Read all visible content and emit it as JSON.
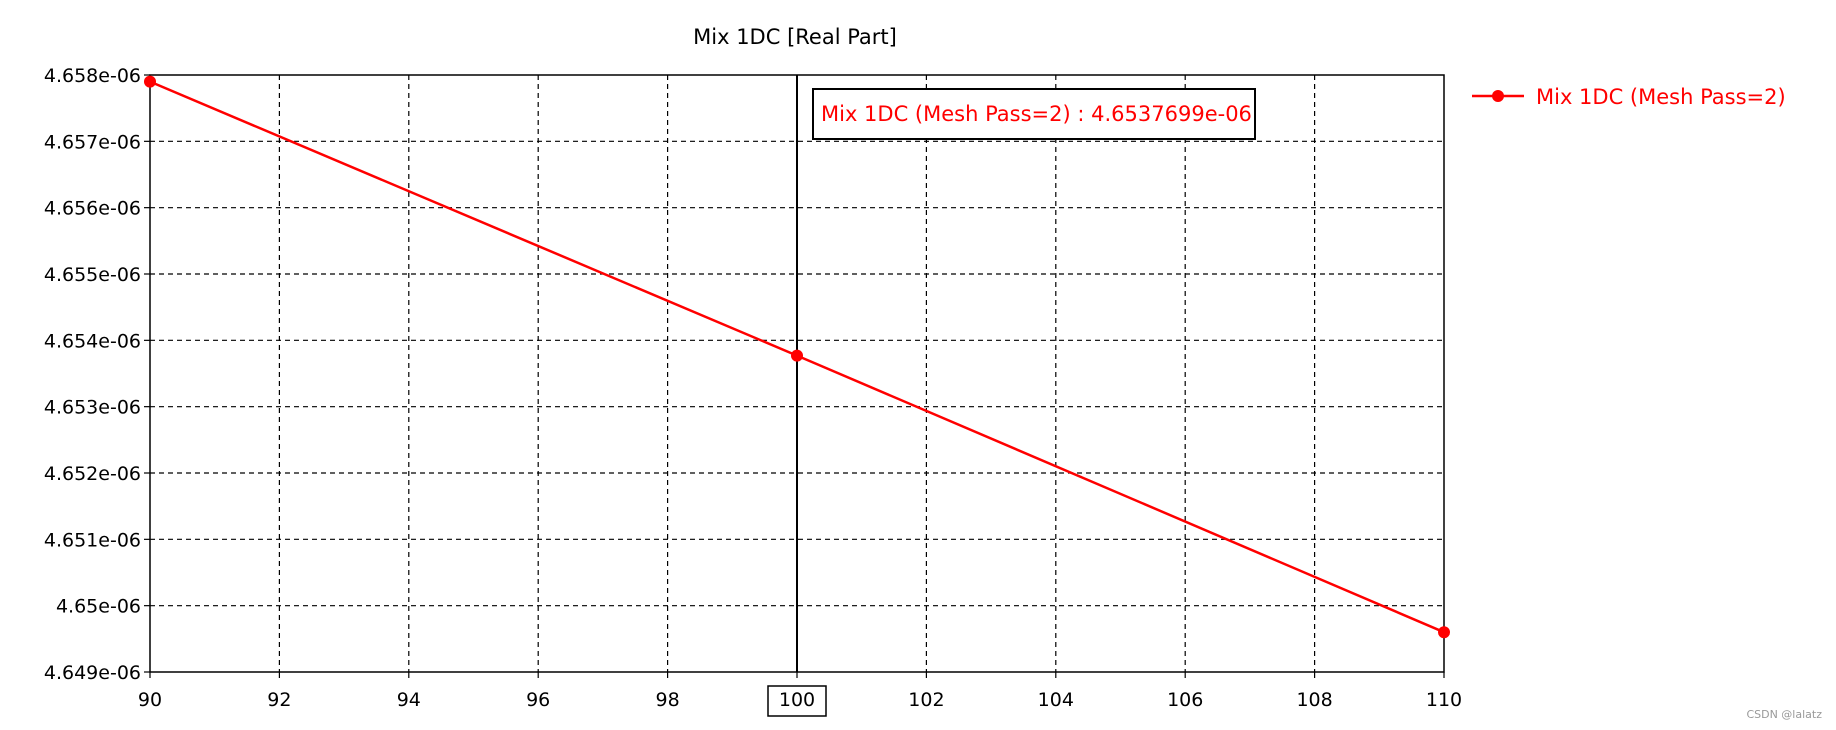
{
  "chart_data": {
    "type": "line",
    "title": "Mix 1DC [Real Part]",
    "xlabel": "",
    "ylabel": "",
    "xlim": [
      90,
      110
    ],
    "ylim": [
      4.649e-06,
      4.658e-06
    ],
    "x_ticks": [
      "90",
      "92",
      "94",
      "96",
      "98",
      "100",
      "102",
      "104",
      "106",
      "108",
      "110"
    ],
    "y_ticks": [
      "4.649e-06",
      "4.65e-06",
      "4.651e-06",
      "4.652e-06",
      "4.653e-06",
      "4.654e-06",
      "4.655e-06",
      "4.656e-06",
      "4.657e-06",
      "4.658e-06"
    ],
    "grid": true,
    "legend_position": "right",
    "series": [
      {
        "name": "Mix 1DC (Mesh Pass=2)",
        "color": "#ff0000",
        "points": [
          {
            "x": 90,
            "y": 4.6579e-06
          },
          {
            "x": 100,
            "y": 4.6537699e-06
          },
          {
            "x": 110,
            "y": 4.6496e-06
          }
        ]
      }
    ],
    "marker": {
      "x": 100,
      "x_label": "100",
      "label": "Mix 1DC (Mesh Pass=2) : 4.6537699e-06",
      "color": "#ff0000"
    }
  },
  "watermark": "CSDN @lalatz"
}
